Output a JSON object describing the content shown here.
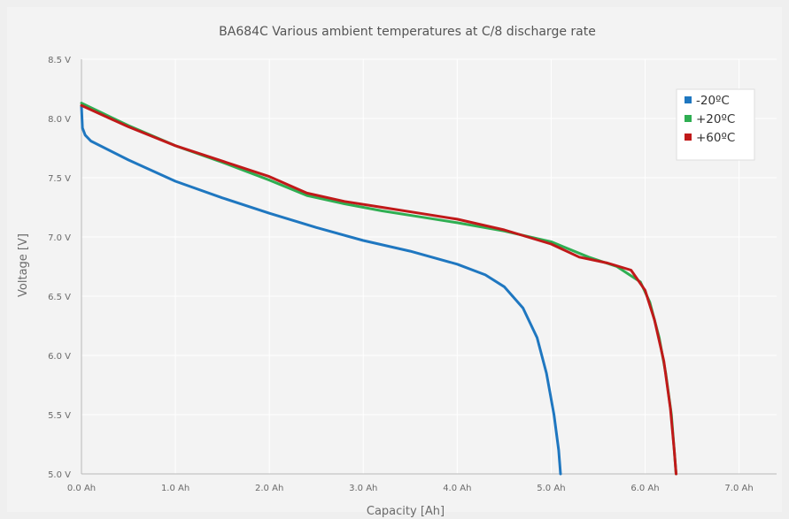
{
  "chart_data": {
    "type": "line",
    "title": "BA684C Various ambient temperatures at C/8 discharge rate",
    "xlabel": "Capacity [Ah]",
    "ylabel": "Voltage [V]",
    "xlim": [
      0,
      7.4
    ],
    "ylim": [
      5.0,
      8.5
    ],
    "x_ticks": [
      0,
      1,
      2,
      3,
      4,
      5,
      6,
      7
    ],
    "x_tick_labels": [
      "0.0 Ah",
      "1.0 Ah",
      "2.0 Ah",
      "3.0 Ah",
      "4.0 Ah",
      "5.0 Ah",
      "6.0 Ah",
      "7.0 Ah"
    ],
    "y_ticks": [
      5.0,
      5.5,
      6.0,
      6.5,
      7.0,
      7.5,
      8.0,
      8.5
    ],
    "y_tick_labels": [
      "5.0 V",
      "5.5 V",
      "6.0 V",
      "6.5 V",
      "7.0 V",
      "7.5 V",
      "8.0 V",
      "8.5 V"
    ],
    "grid": true,
    "legend_position": "top-right",
    "series": [
      {
        "name": "-20ºC",
        "color": "#1f77c0",
        "points": [
          [
            0.0,
            8.1
          ],
          [
            0.01,
            7.92
          ],
          [
            0.04,
            7.86
          ],
          [
            0.1,
            7.81
          ],
          [
            0.5,
            7.65
          ],
          [
            1.0,
            7.47
          ],
          [
            1.5,
            7.33
          ],
          [
            2.0,
            7.2
          ],
          [
            2.5,
            7.08
          ],
          [
            3.0,
            6.97
          ],
          [
            3.5,
            6.88
          ],
          [
            4.0,
            6.77
          ],
          [
            4.3,
            6.68
          ],
          [
            4.5,
            6.58
          ],
          [
            4.7,
            6.4
          ],
          [
            4.85,
            6.15
          ],
          [
            4.95,
            5.85
          ],
          [
            5.03,
            5.5
          ],
          [
            5.08,
            5.2
          ],
          [
            5.1,
            5.0
          ]
        ]
      },
      {
        "name": "+20ºC",
        "color": "#2fae52",
        "points": [
          [
            0.0,
            8.13
          ],
          [
            0.5,
            7.94
          ],
          [
            1.0,
            7.77
          ],
          [
            1.5,
            7.63
          ],
          [
            2.0,
            7.48
          ],
          [
            2.4,
            7.35
          ],
          [
            2.8,
            7.28
          ],
          [
            3.2,
            7.22
          ],
          [
            3.6,
            7.17
          ],
          [
            4.0,
            7.12
          ],
          [
            4.5,
            7.05
          ],
          [
            5.0,
            6.96
          ],
          [
            5.4,
            6.83
          ],
          [
            5.7,
            6.75
          ],
          [
            5.95,
            6.62
          ],
          [
            6.05,
            6.45
          ],
          [
            6.15,
            6.15
          ],
          [
            6.22,
            5.85
          ],
          [
            6.28,
            5.5
          ],
          [
            6.31,
            5.2
          ],
          [
            6.33,
            5.0
          ]
        ]
      },
      {
        "name": "+60ºC",
        "color": "#c01919",
        "points": [
          [
            0.0,
            8.11
          ],
          [
            0.5,
            7.93
          ],
          [
            1.0,
            7.77
          ],
          [
            1.5,
            7.64
          ],
          [
            2.0,
            7.51
          ],
          [
            2.4,
            7.37
          ],
          [
            2.8,
            7.3
          ],
          [
            3.2,
            7.25
          ],
          [
            3.6,
            7.2
          ],
          [
            4.0,
            7.15
          ],
          [
            4.5,
            7.06
          ],
          [
            5.0,
            6.94
          ],
          [
            5.3,
            6.83
          ],
          [
            5.6,
            6.78
          ],
          [
            5.85,
            6.72
          ],
          [
            6.0,
            6.55
          ],
          [
            6.1,
            6.3
          ],
          [
            6.2,
            5.95
          ],
          [
            6.27,
            5.55
          ],
          [
            6.31,
            5.2
          ],
          [
            6.33,
            5.0
          ]
        ]
      }
    ]
  }
}
